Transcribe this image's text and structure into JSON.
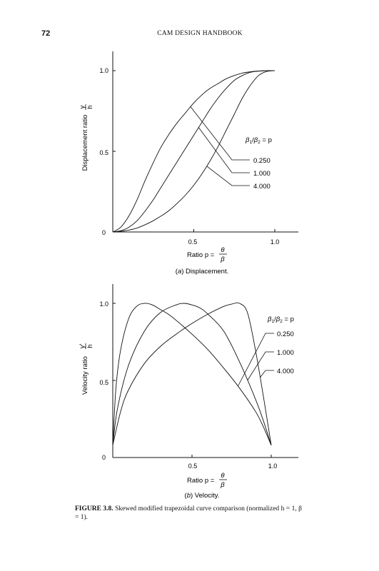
{
  "header": {
    "page_number": "72",
    "running_title": "CAM DESIGN HANDBOOK"
  },
  "figure": {
    "label": "FIGURE 3.8.",
    "caption_text": "Skewed modified trapezoidal curve comparison (normalized h = 1, β = 1)."
  },
  "chart_data": [
    {
      "type": "line",
      "caption": "(a) Displacement.",
      "xlabel": "Ratio p = θ/β",
      "ylabel": "Displacement ratio y/h",
      "xlim": [
        0,
        1.07
      ],
      "ylim": [
        0,
        1.1
      ],
      "x_ticks": [
        "0.5",
        "1.0"
      ],
      "y_ticks": [
        "0",
        "0.5",
        "1.0"
      ],
      "grid": false,
      "legend_title": "β1/β2 = p",
      "legend_placement": "right, callout lines",
      "series": [
        {
          "name": "0.250",
          "x": [
            0,
            0.05,
            0.1,
            0.15,
            0.2,
            0.25,
            0.3,
            0.35,
            0.4,
            0.45,
            0.5,
            0.55,
            0.6,
            0.65,
            0.7,
            0.75,
            0.8,
            0.85,
            0.9,
            0.95,
            1.0
          ],
          "y": [
            0,
            0.03,
            0.1,
            0.2,
            0.32,
            0.43,
            0.53,
            0.61,
            0.68,
            0.74,
            0.8,
            0.85,
            0.89,
            0.92,
            0.95,
            0.97,
            0.985,
            0.993,
            0.998,
            1.0,
            1.0
          ]
        },
        {
          "name": "1.000",
          "x": [
            0,
            0.05,
            0.1,
            0.15,
            0.2,
            0.25,
            0.3,
            0.35,
            0.4,
            0.45,
            0.5,
            0.55,
            0.6,
            0.65,
            0.7,
            0.75,
            0.8,
            0.85,
            0.9,
            0.95,
            1.0
          ],
          "y": [
            0,
            0.008,
            0.03,
            0.07,
            0.13,
            0.2,
            0.28,
            0.36,
            0.44,
            0.52,
            0.6,
            0.68,
            0.76,
            0.83,
            0.89,
            0.94,
            0.97,
            0.99,
            0.997,
            1.0,
            1.0
          ]
        },
        {
          "name": "4.000",
          "x": [
            0,
            0.05,
            0.1,
            0.15,
            0.2,
            0.25,
            0.3,
            0.35,
            0.4,
            0.45,
            0.5,
            0.55,
            0.6,
            0.65,
            0.7,
            0.75,
            0.8,
            0.85,
            0.9,
            0.95,
            1.0
          ],
          "y": [
            0,
            0.004,
            0.012,
            0.025,
            0.045,
            0.07,
            0.1,
            0.135,
            0.18,
            0.23,
            0.29,
            0.36,
            0.44,
            0.53,
            0.63,
            0.73,
            0.83,
            0.91,
            0.97,
            0.995,
            1.0
          ]
        }
      ]
    },
    {
      "type": "line",
      "caption": "(b) Velocity.",
      "xlabel": "Ratio p = θ/β",
      "ylabel": "Velocity ratio y′/h",
      "xlim": [
        0,
        1.07
      ],
      "ylim": [
        0,
        1.1
      ],
      "x_ticks": [
        "0.5",
        "1.0"
      ],
      "y_ticks": [
        "0",
        "0.5",
        "1.0"
      ],
      "grid": false,
      "legend_title": "β1/β2 = p",
      "legend_placement": "right, callout lines",
      "series": [
        {
          "name": "0.250",
          "x": [
            0,
            0.02,
            0.05,
            0.1,
            0.15,
            0.2,
            0.25,
            0.3,
            0.35,
            0.4,
            0.5,
            0.6,
            0.7,
            0.8,
            0.9,
            0.95,
            1.0
          ],
          "y": [
            0.08,
            0.45,
            0.7,
            0.9,
            0.98,
            1.0,
            0.99,
            0.96,
            0.93,
            0.89,
            0.8,
            0.7,
            0.58,
            0.45,
            0.3,
            0.2,
            0.08
          ]
        },
        {
          "name": "1.000",
          "x": [
            0,
            0.03,
            0.1,
            0.2,
            0.3,
            0.4,
            0.45,
            0.5,
            0.55,
            0.6,
            0.7,
            0.8,
            0.9,
            0.95,
            1.0
          ],
          "y": [
            0.08,
            0.32,
            0.6,
            0.82,
            0.94,
            0.99,
            1.0,
            0.99,
            0.97,
            0.93,
            0.82,
            0.62,
            0.38,
            0.24,
            0.08
          ]
        },
        {
          "name": "4.000",
          "x": [
            0,
            0.05,
            0.1,
            0.2,
            0.3,
            0.4,
            0.5,
            0.6,
            0.7,
            0.75,
            0.8,
            0.85,
            0.9,
            0.95,
            1.0
          ],
          "y": [
            0.08,
            0.3,
            0.44,
            0.61,
            0.72,
            0.8,
            0.87,
            0.93,
            0.98,
            0.995,
            1.0,
            0.94,
            0.7,
            0.4,
            0.08
          ]
        }
      ]
    }
  ]
}
